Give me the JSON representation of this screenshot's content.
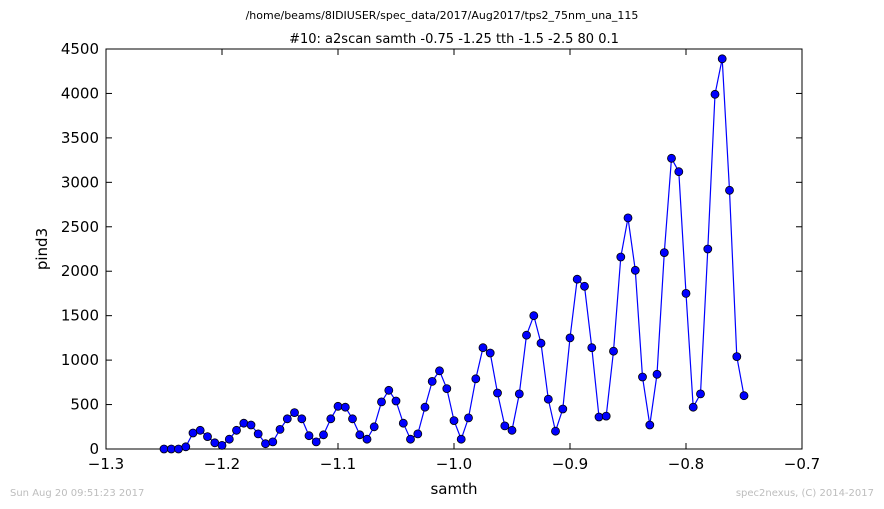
{
  "figure": {
    "file_path": "/home/beams/8IDIUSER/spec_data/2017/Aug2017/tps2_75nm_una_115",
    "footer_left": "Sun Aug 20 09:51:23 2017",
    "footer_right": "spec2nexus, (C) 2014-2017"
  },
  "chart_data": {
    "type": "line",
    "title": "#10: a2scan  samth -0.75 -1.25  tth -1.5 -2.5  80 0.1",
    "xlabel": "samth",
    "ylabel": "pind3",
    "xlim": [
      -1.3,
      -0.7
    ],
    "ylim": [
      0,
      4500
    ],
    "xticks": [
      -1.3,
      -1.2,
      -1.1,
      -1.0,
      -0.9,
      -0.8,
      -0.7
    ],
    "xtick_labels": [
      "−1.3",
      "−1.2",
      "−1.1",
      "−1.0",
      "−0.9",
      "−0.8",
      "−0.7"
    ],
    "yticks": [
      0,
      500,
      1000,
      1500,
      2000,
      2500,
      3000,
      3500,
      4000,
      4500
    ],
    "ytick_labels": [
      "0",
      "500",
      "1000",
      "1500",
      "2000",
      "2500",
      "3000",
      "3500",
      "4000",
      "4500"
    ],
    "grid": false,
    "colors": {
      "series": "#0000ff",
      "frame": "#000000"
    },
    "series": [
      {
        "x": [
          -1.25,
          -1.2437,
          -1.2375,
          -1.2312,
          -1.225,
          -1.2188,
          -1.2125,
          -1.2062,
          -1.2,
          -1.1937,
          -1.1875,
          -1.1812,
          -1.175,
          -1.1688,
          -1.1625,
          -1.1562,
          -1.15,
          -1.1437,
          -1.1375,
          -1.1312,
          -1.125,
          -1.1188,
          -1.1125,
          -1.1062,
          -1.1,
          -1.0937,
          -1.0875,
          -1.0812,
          -1.075,
          -1.0688,
          -1.0625,
          -1.0562,
          -1.05,
          -1.0437,
          -1.0375,
          -1.0312,
          -1.025,
          -1.0188,
          -1.0125,
          -1.0062,
          -1.0,
          -0.9938,
          -0.9875,
          -0.9812,
          -0.975,
          -0.9688,
          -0.9625,
          -0.9562,
          -0.95,
          -0.9437,
          -0.9375,
          -0.9312,
          -0.925,
          -0.9187,
          -0.9125,
          -0.9062,
          -0.9,
          -0.8938,
          -0.8875,
          -0.8812,
          -0.875,
          -0.8688,
          -0.8625,
          -0.8562,
          -0.85,
          -0.8437,
          -0.8375,
          -0.8312,
          -0.825,
          -0.8187,
          -0.8125,
          -0.8062,
          -0.8,
          -0.7938,
          -0.7875,
          -0.7812,
          -0.775,
          -0.7688,
          -0.7625,
          -0.7562,
          -0.75
        ],
        "y": [
          0,
          0,
          0,
          25,
          180,
          210,
          140,
          70,
          40,
          110,
          210,
          290,
          270,
          170,
          60,
          80,
          220,
          340,
          410,
          340,
          150,
          80,
          160,
          340,
          480,
          470,
          340,
          160,
          110,
          250,
          530,
          660,
          540,
          290,
          110,
          170,
          470,
          760,
          880,
          680,
          320,
          110,
          350,
          790,
          1140,
          1080,
          630,
          260,
          210,
          620,
          1280,
          1500,
          1190,
          560,
          200,
          450,
          1250,
          1910,
          1830,
          1140,
          360,
          370,
          1100,
          2160,
          2600,
          2010,
          810,
          270,
          840,
          2210,
          3270,
          3120,
          1750,
          470,
          620,
          2250,
          3990,
          4390,
          2910,
          1040,
          600
        ]
      }
    ]
  }
}
